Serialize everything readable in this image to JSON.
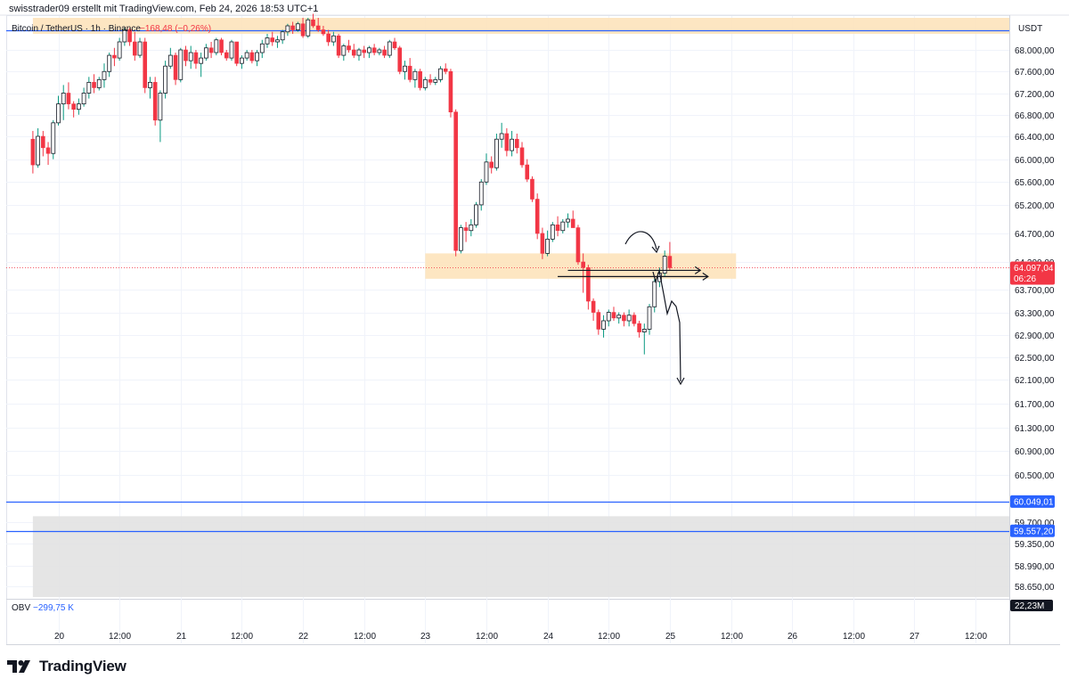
{
  "header": {
    "attribution": "swisstrader09 erstellt mit TradingView.com, Feb 24, 2026 18:53 UTC+1"
  },
  "legend": {
    "symbol": "Bitcoin / TetherUS · 1h · Binance",
    "change": "−168,48 (−0,26%)",
    "change_color": "#f23645"
  },
  "currency": "USDT",
  "obv": {
    "label": "OBV",
    "value": "−299,75 K",
    "axis_badge": "22,23M"
  },
  "price_badges": [
    {
      "text": "64.097,04",
      "sub": "06:26",
      "price": 64097.04,
      "color": "#f23645"
    },
    {
      "text": "60.049,01",
      "price": 60049.01,
      "color": "#2962ff"
    },
    {
      "text": "59.557,20",
      "price": 59557.2,
      "color": "#2962ff"
    }
  ],
  "brand": {
    "logo_text": "TradingView"
  },
  "colors": {
    "up": "#089981",
    "down": "#f23645",
    "zone": "#fde3bb",
    "support_zone": "#e2e2e2",
    "hline": "#2962ff",
    "grid": "#f0f3fa"
  },
  "chart_data": {
    "type": "candlestick",
    "symbol": "BTCUSDT",
    "timeframe": "1h",
    "y_ticks": [
      68000,
      67600,
      67200,
      66800,
      66400,
      66000,
      65600,
      65200,
      64700,
      64200,
      63700,
      63300,
      62900,
      62500,
      62100,
      61700,
      61300,
      60900,
      60500,
      59700,
      59350,
      58990,
      58650
    ],
    "y_tick_labels": [
      "68.000,00",
      "67.600,00",
      "67.200,00",
      "66.800,00",
      "66.400,00",
      "66.000,00",
      "65.600,00",
      "65.200,00",
      "64.700,00",
      "64.200,00",
      "63.700,00",
      "63.300,00",
      "62.900,00",
      "62.500,00",
      "62.100,00",
      "61.700,00",
      "61.300,00",
      "60.900,00",
      "60.500,00",
      "59.700,00",
      "59.350,00",
      "58.990,00",
      "58.650,00"
    ],
    "x_ticks": [
      {
        "label": "20",
        "t": 0
      },
      {
        "label": "12:00",
        "t": 12
      },
      {
        "label": "21",
        "t": 24
      },
      {
        "label": "12:00",
        "t": 36
      },
      {
        "label": "22",
        "t": 48
      },
      {
        "label": "12:00",
        "t": 60
      },
      {
        "label": "23",
        "t": 72
      },
      {
        "label": "12:00",
        "t": 84
      },
      {
        "label": "24",
        "t": 96
      },
      {
        "label": "12:00",
        "t": 108
      },
      {
        "label": "25",
        "t": 120
      },
      {
        "label": "12:00",
        "t": 132
      },
      {
        "label": "26",
        "t": 144
      },
      {
        "label": "12:00",
        "t": 156
      },
      {
        "label": "27",
        "t": 168
      },
      {
        "label": "12:00",
        "t": 180
      }
    ],
    "t_start": -5,
    "candles": [
      [
        66350,
        66500,
        65750,
        65900
      ],
      [
        65900,
        66550,
        65850,
        66400
      ],
      [
        66400,
        66500,
        66050,
        66200
      ],
      [
        66200,
        66300,
        65900,
        66100
      ],
      [
        66100,
        66700,
        66000,
        66650
      ],
      [
        66650,
        67150,
        66600,
        67000
      ],
      [
        67000,
        67350,
        66700,
        67200
      ],
      [
        67200,
        67400,
        66900,
        67000
      ],
      [
        67000,
        67050,
        66750,
        66900
      ],
      [
        66900,
        67100,
        66800,
        67000
      ],
      [
        67000,
        67300,
        66950,
        67200
      ],
      [
        67200,
        67500,
        67100,
        67400
      ],
      [
        67400,
        67550,
        67200,
        67300
      ],
      [
        67300,
        67500,
        67250,
        67450
      ],
      [
        67450,
        67750,
        67300,
        67600
      ],
      [
        67600,
        67950,
        67500,
        67900
      ],
      [
        67900,
        68050,
        67700,
        67850
      ],
      [
        67850,
        68300,
        67800,
        68200
      ],
      [
        68200,
        68550,
        68100,
        68500
      ],
      [
        68500,
        68550,
        68100,
        68200
      ],
      [
        68200,
        68450,
        67800,
        67900
      ],
      [
        67900,
        68300,
        67850,
        68200
      ],
      [
        68200,
        68300,
        67200,
        67300
      ],
      [
        67300,
        67500,
        67100,
        67400
      ],
      [
        67400,
        67500,
        66600,
        66700
      ],
      [
        66700,
        67250,
        66300,
        67200
      ],
      [
        67200,
        67800,
        67100,
        67700
      ],
      [
        67700,
        68050,
        67650,
        67900
      ],
      [
        67900,
        67950,
        67350,
        67450
      ],
      [
        67450,
        68050,
        67400,
        68000
      ],
      [
        68000,
        68100,
        67700,
        67800
      ],
      [
        67800,
        68100,
        67650,
        67950
      ],
      [
        67950,
        68000,
        67650,
        67750
      ],
      [
        67750,
        67950,
        67500,
        67850
      ],
      [
        67850,
        68150,
        67800,
        68050
      ],
      [
        68050,
        68200,
        67850,
        67950
      ],
      [
        67950,
        68300,
        67900,
        68250
      ],
      [
        68250,
        68300,
        67900,
        67950
      ],
      [
        67950,
        68000,
        67800,
        67850
      ],
      [
        67850,
        68250,
        67800,
        68200
      ],
      [
        68200,
        68150,
        67700,
        67750
      ],
      [
        67750,
        67900,
        67650,
        67850
      ],
      [
        67850,
        68000,
        67800,
        67950
      ],
      [
        67950,
        68000,
        67750,
        67800
      ],
      [
        67800,
        68000,
        67700,
        67950
      ],
      [
        67950,
        68250,
        67850,
        68150
      ],
      [
        68150,
        68400,
        68050,
        68300
      ],
      [
        68300,
        68450,
        68100,
        68200
      ],
      [
        68200,
        68350,
        68050,
        68250
      ],
      [
        68250,
        68500,
        68150,
        68450
      ],
      [
        68450,
        68650,
        68350,
        68600
      ],
      [
        68600,
        68700,
        68400,
        68500
      ],
      [
        68500,
        68700,
        68450,
        68650
      ],
      [
        68650,
        68800,
        68300,
        68350
      ],
      [
        68350,
        68800,
        68300,
        68750
      ],
      [
        68750,
        68900,
        68550,
        68600
      ],
      [
        68600,
        68800,
        68450,
        68500
      ],
      [
        68500,
        68600,
        68350,
        68400
      ],
      [
        68400,
        68500,
        68100,
        68200
      ],
      [
        68200,
        68450,
        68100,
        68350
      ],
      [
        68350,
        68400,
        67850,
        67900
      ],
      [
        67900,
        68150,
        67800,
        68100
      ],
      [
        68100,
        68250,
        67950,
        68000
      ],
      [
        68000,
        68150,
        67850,
        67900
      ],
      [
        67900,
        68050,
        67800,
        68000
      ],
      [
        68000,
        68100,
        67850,
        67950
      ],
      [
        67950,
        68100,
        67850,
        68050
      ],
      [
        68050,
        68150,
        67900,
        67950
      ],
      [
        67950,
        68050,
        67900,
        68000
      ],
      [
        68000,
        68100,
        67850,
        67900
      ],
      [
        67900,
        68250,
        67850,
        68200
      ],
      [
        68200,
        68300,
        68000,
        68050
      ],
      [
        68050,
        68100,
        67550,
        67600
      ],
      [
        67600,
        67800,
        67450,
        67700
      ],
      [
        67700,
        67850,
        67400,
        67450
      ],
      [
        67450,
        67650,
        67300,
        67600
      ],
      [
        67600,
        67650,
        67250,
        67300
      ],
      [
        67300,
        67500,
        67250,
        67450
      ],
      [
        67450,
        67550,
        67350,
        67400
      ],
      [
        67400,
        67500,
        67350,
        67450
      ],
      [
        67450,
        67700,
        67400,
        67650
      ],
      [
        67650,
        67750,
        67550,
        67600
      ],
      [
        67600,
        67650,
        66750,
        66850
      ],
      [
        66850,
        66900,
        64300,
        64400
      ],
      [
        64400,
        64850,
        64350,
        64800
      ],
      [
        64800,
        64900,
        64550,
        64750
      ],
      [
        64750,
        64950,
        64650,
        64850
      ],
      [
        64850,
        65250,
        64800,
        65200
      ],
      [
        65200,
        65650,
        65100,
        65600
      ],
      [
        65600,
        66100,
        65550,
        65950
      ],
      [
        65950,
        66050,
        65750,
        65850
      ],
      [
        65850,
        66450,
        65800,
        66350
      ],
      [
        66350,
        66650,
        66200,
        66450
      ],
      [
        66450,
        66550,
        66050,
        66150
      ],
      [
        66150,
        66500,
        66050,
        66350
      ],
      [
        66350,
        66450,
        66100,
        66200
      ],
      [
        66200,
        66300,
        65850,
        65900
      ],
      [
        65900,
        66000,
        65600,
        65650
      ],
      [
        65650,
        65700,
        65250,
        65300
      ],
      [
        65300,
        65400,
        64600,
        64700
      ],
      [
        64700,
        64800,
        64250,
        64350
      ],
      [
        64350,
        64750,
        64300,
        64600
      ],
      [
        64600,
        64900,
        64550,
        64850
      ],
      [
        64850,
        65000,
        64650,
        64750
      ],
      [
        64750,
        64950,
        64700,
        64900
      ],
      [
        64900,
        65050,
        64800,
        64950
      ],
      [
        64950,
        65100,
        64850,
        64800
      ],
      [
        64800,
        64850,
        64150,
        64200
      ],
      [
        64200,
        64350,
        63650,
        64100
      ],
      [
        64100,
        64150,
        63350,
        63500
      ],
      [
        63500,
        63550,
        63150,
        63300
      ],
      [
        63300,
        63350,
        62900,
        63000
      ],
      [
        63000,
        63250,
        62850,
        63150
      ],
      [
        63150,
        63350,
        63050,
        63300
      ],
      [
        63300,
        63400,
        63150,
        63200
      ],
      [
        63200,
        63300,
        63100,
        63250
      ],
      [
        63250,
        63300,
        63050,
        63150
      ],
      [
        63150,
        63350,
        63050,
        63250
      ],
      [
        63250,
        63300,
        63050,
        63100
      ],
      [
        63100,
        63150,
        62850,
        62950
      ],
      [
        62950,
        63100,
        62550,
        63000
      ],
      [
        63000,
        63450,
        62900,
        63400
      ],
      [
        63400,
        63900,
        63300,
        63850
      ],
      [
        63850,
        64100,
        63750,
        64000
      ],
      [
        64000,
        64400,
        63950,
        64300
      ],
      [
        64300,
        64550,
        64050,
        64097
      ]
    ],
    "zones": [
      {
        "top": 68800,
        "bottom": 68400,
        "t_from": -5,
        "t_to": 209,
        "color": "#fde3bb"
      },
      {
        "top": 64350,
        "bottom": 63900,
        "t_from": 72,
        "t_to": 133,
        "color": "#fde3bb"
      },
      {
        "top": 59800,
        "bottom": 58480,
        "t_from": -5,
        "t_to": 209,
        "color": "#e2e2e2"
      }
    ],
    "hlines": [
      {
        "price": 68480,
        "color": "#2962ff"
      },
      {
        "price": 60049.01,
        "color": "#2962ff"
      },
      {
        "price": 59557.2,
        "color": "#2962ff"
      },
      {
        "price": 64097.04,
        "color": "#f23645",
        "dashed": true
      }
    ],
    "arrows": [
      {
        "t_from": 100,
        "t_to": 126,
        "price": 64050
      },
      {
        "t_from": 98,
        "t_to": 127.5,
        "price": 63940
      }
    ],
    "indicator": {
      "name": "OBV",
      "value": "−299,75 K"
    }
  }
}
